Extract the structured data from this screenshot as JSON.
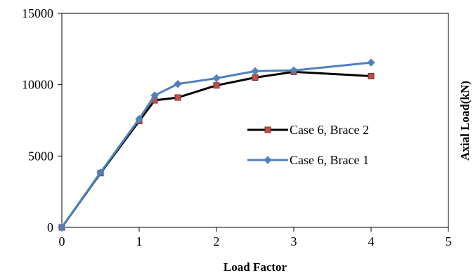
{
  "chart_data": {
    "type": "line",
    "xlabel": "Load Factor",
    "ylabel": "Axial Load(kN)",
    "xlim": [
      0,
      5
    ],
    "ylim": [
      0,
      15000
    ],
    "xticks": [
      "0",
      "1",
      "2",
      "3",
      "4",
      "5"
    ],
    "yticks": [
      "0",
      "5000",
      "10000",
      "15000"
    ],
    "grid": false,
    "legend_position": "right",
    "series": [
      {
        "name": "Case 6, Brace 2",
        "color": "#000000",
        "marker": "square",
        "marker_color": "#c0504d",
        "x": [
          0,
          0.5,
          1.0,
          1.2,
          1.5,
          2.0,
          2.5,
          3.0,
          4.0
        ],
        "y": [
          0,
          3800,
          7450,
          8900,
          9100,
          9950,
          10500,
          10900,
          10600
        ]
      },
      {
        "name": "Case 6, Brace 1",
        "color": "#4f81bd",
        "marker": "diamond",
        "marker_color": "#4f81bd",
        "x": [
          0,
          0.5,
          1.0,
          1.2,
          1.5,
          2.0,
          2.5,
          3.0,
          4.0
        ],
        "y": [
          0,
          3850,
          7600,
          9250,
          10050,
          10450,
          10950,
          11000,
          11550
        ]
      }
    ]
  }
}
